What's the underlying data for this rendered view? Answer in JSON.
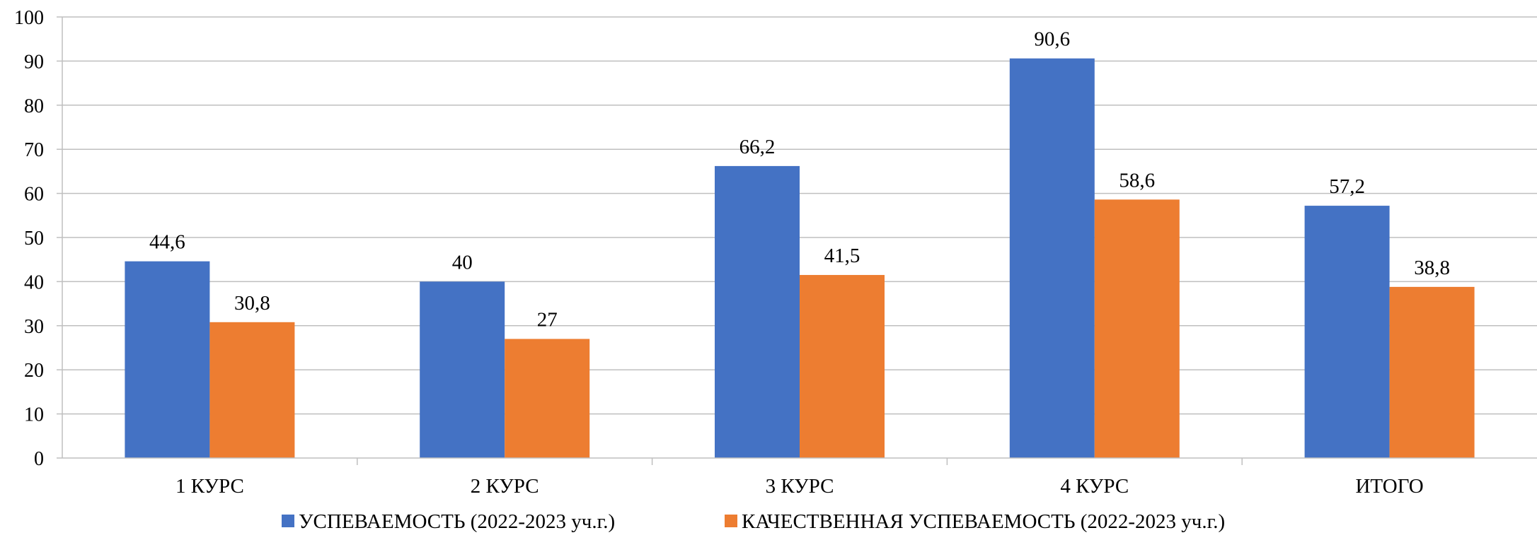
{
  "chart_data": {
    "type": "bar",
    "categories": [
      "1 КУРС",
      "2 КУРС",
      "3 КУРС",
      "4 КУРС",
      "ИТОГО"
    ],
    "series": [
      {
        "name": "УСПЕВАЕМОСТЬ (2022-2023 уч.г.)",
        "values": [
          44.6,
          40,
          66.2,
          90.6,
          57.2
        ],
        "labels": [
          "44,6",
          "40",
          "66,2",
          "90,6",
          "57,2"
        ],
        "color": "#4472C4"
      },
      {
        "name": "КАЧЕСТВЕННАЯ УСПЕВАЕМОСТЬ (2022-2023 уч.г.)",
        "values": [
          30.8,
          27,
          41.5,
          58.6,
          38.8
        ],
        "labels": [
          "30,8",
          "27",
          "41,5",
          "58,6",
          "38,8"
        ],
        "color": "#ED7D31"
      }
    ],
    "yticks": [
      "0",
      "10",
      "20",
      "30",
      "40",
      "50",
      "60",
      "70",
      "80",
      "90",
      "100"
    ],
    "ylim": [
      0,
      100
    ],
    "grid": true,
    "legend_position": "bottom"
  }
}
